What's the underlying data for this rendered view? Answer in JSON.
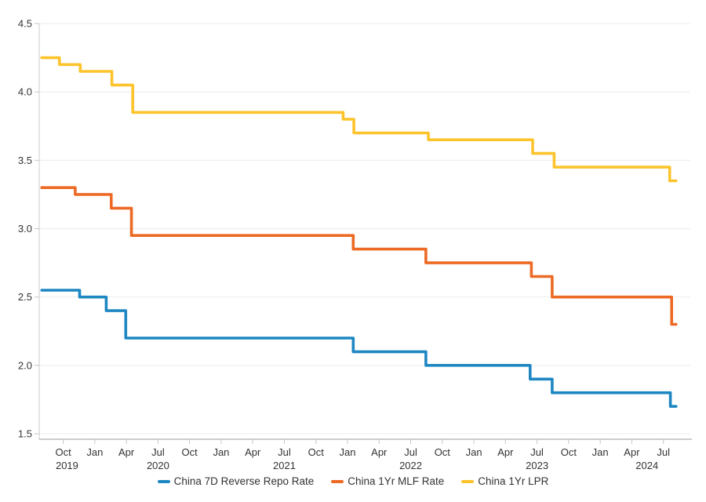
{
  "colors": {
    "background": "#FFFFFF",
    "grid_line": "#ECECEC",
    "axis_line": "#999999",
    "tick_mark": "#C6C6C6",
    "left_axis_line": "#CCCCCC",
    "tick_text": "#333333",
    "legend_text": "#333333"
  },
  "chart_data": {
    "type": "line",
    "step": "horizontal-then-vertical",
    "title": "",
    "xlabel": "",
    "ylabel": "",
    "grid": "horizontal-only",
    "legend_position": "bottom-center",
    "ylim": [
      1.5,
      4.5
    ],
    "x_domain_decimal_years": [
      2019.56,
      2024.713
    ],
    "yticks": [
      {
        "v": 4.5,
        "label": "4.5"
      },
      {
        "v": 4.0,
        "label": "4.0"
      },
      {
        "v": 3.5,
        "label": "3.5"
      },
      {
        "v": 3.0,
        "label": "3.0"
      },
      {
        "v": 2.5,
        "label": "2.5"
      },
      {
        "v": 2.0,
        "label": "2.0"
      },
      {
        "v": 1.5,
        "label": "1.5"
      }
    ],
    "xticks": [
      {
        "t": 2019.75,
        "label": "Oct"
      },
      {
        "t": 2020.0,
        "label": "Jan"
      },
      {
        "t": 2020.25,
        "label": "Apr"
      },
      {
        "t": 2020.5,
        "label": "Jul"
      },
      {
        "t": 2020.75,
        "label": "Oct"
      },
      {
        "t": 2021.0,
        "label": "Jan"
      },
      {
        "t": 2021.25,
        "label": "Apr"
      },
      {
        "t": 2021.5,
        "label": "Jul"
      },
      {
        "t": 2021.75,
        "label": "Oct"
      },
      {
        "t": 2022.0,
        "label": "Jan"
      },
      {
        "t": 2022.25,
        "label": "Apr"
      },
      {
        "t": 2022.5,
        "label": "Jul"
      },
      {
        "t": 2022.75,
        "label": "Oct"
      },
      {
        "t": 2023.0,
        "label": "Jan"
      },
      {
        "t": 2023.25,
        "label": "Apr"
      },
      {
        "t": 2023.5,
        "label": "Jul"
      },
      {
        "t": 2023.75,
        "label": "Oct"
      },
      {
        "t": 2024.0,
        "label": "Jan"
      },
      {
        "t": 2024.25,
        "label": "Apr"
      },
      {
        "t": 2024.5,
        "label": "Jul"
      }
    ],
    "year_ticks": [
      {
        "t": 2019.78,
        "label": "2019"
      },
      {
        "t": 2020.5,
        "label": "2020"
      },
      {
        "t": 2021.5,
        "label": "2021"
      },
      {
        "t": 2022.5,
        "label": "2022"
      },
      {
        "t": 2023.5,
        "label": "2023"
      },
      {
        "t": 2024.37,
        "label": "2024"
      }
    ],
    "series": [
      {
        "name": "China 7D Reverse Repo Rate",
        "color": "#1E87C2",
        "end_t": 2024.6,
        "points": [
          [
            2019.58,
            2.55
          ],
          [
            2019.88,
            2.5
          ],
          [
            2020.09,
            2.4
          ],
          [
            2020.245,
            2.2
          ],
          [
            2022.045,
            2.1
          ],
          [
            2022.62,
            2.0
          ],
          [
            2023.445,
            1.9
          ],
          [
            2023.62,
            1.8
          ],
          [
            2024.555,
            1.7
          ]
        ]
      },
      {
        "name": "China 1Yr MLF Rate",
        "color": "#ED6A24",
        "end_t": 2024.6,
        "points": [
          [
            2019.58,
            3.3
          ],
          [
            2019.845,
            3.25
          ],
          [
            2020.13,
            3.15
          ],
          [
            2020.29,
            2.95
          ],
          [
            2022.045,
            2.85
          ],
          [
            2022.62,
            2.75
          ],
          [
            2023.455,
            2.65
          ],
          [
            2023.62,
            2.5
          ],
          [
            2024.565,
            2.3
          ]
        ]
      },
      {
        "name": "China 1Yr LPR",
        "color": "#FCC32C",
        "end_t": 2024.6,
        "points": [
          [
            2019.58,
            4.25
          ],
          [
            2019.72,
            4.2
          ],
          [
            2019.885,
            4.15
          ],
          [
            2020.135,
            4.05
          ],
          [
            2020.3,
            3.85
          ],
          [
            2021.965,
            3.8
          ],
          [
            2022.05,
            3.7
          ],
          [
            2022.64,
            3.65
          ],
          [
            2023.465,
            3.55
          ],
          [
            2023.635,
            3.45
          ],
          [
            2024.55,
            3.35
          ]
        ]
      }
    ]
  }
}
